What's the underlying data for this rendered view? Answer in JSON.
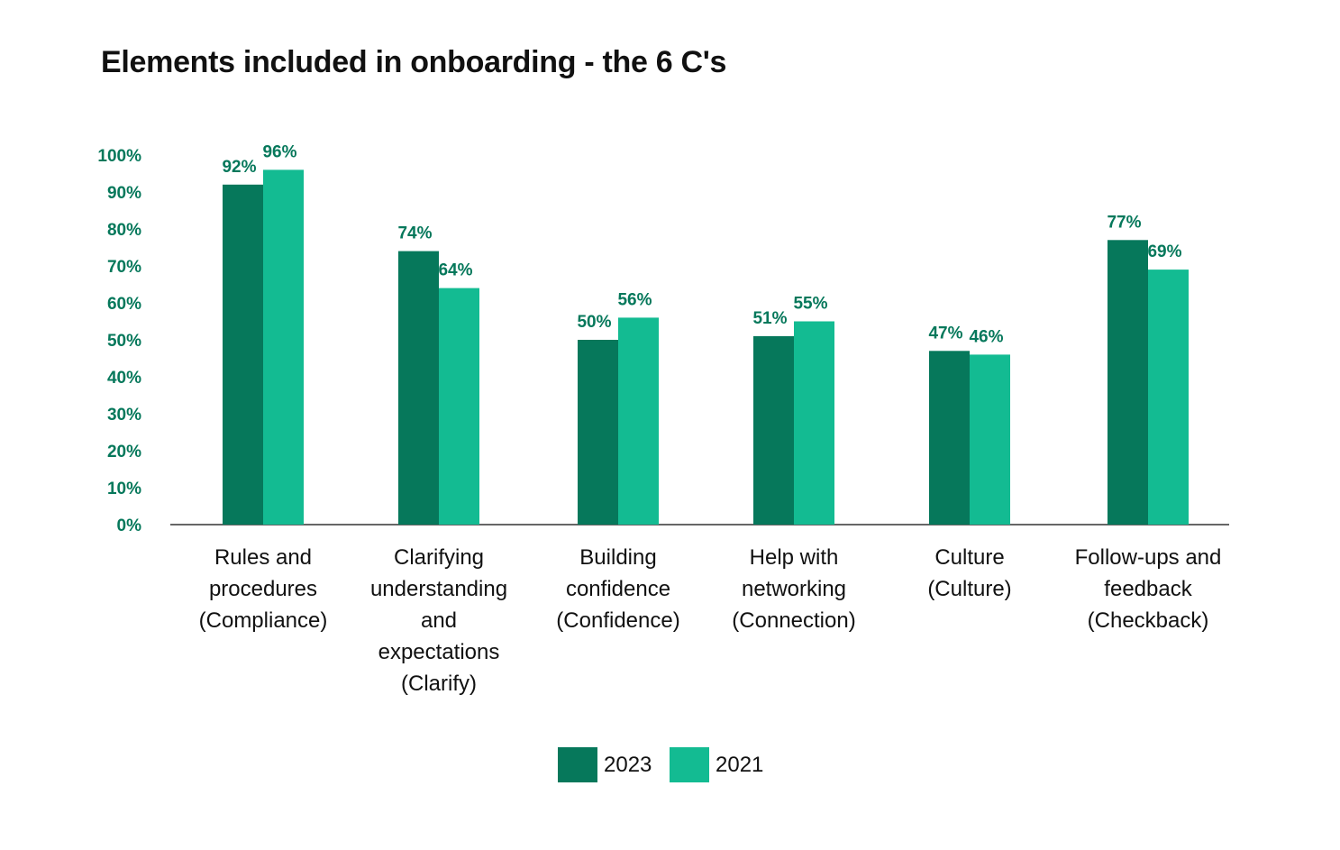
{
  "chart_data": {
    "type": "bar",
    "title": "Elements included in onboarding - the 6 C's",
    "categories": [
      [
        "Rules and",
        "procedures",
        "(Compliance)"
      ],
      [
        "Clarifying",
        "understanding",
        "and",
        "expectations",
        "(Clarify)"
      ],
      [
        "Building",
        "confidence",
        "(Confidence)"
      ],
      [
        "Help with",
        "networking",
        "(Connection)"
      ],
      [
        "Culture",
        "(Culture)"
      ],
      [
        "Follow-ups and",
        "feedback",
        "(Checkback)"
      ]
    ],
    "series": [
      {
        "name": "2023",
        "color": "#06785b",
        "values": [
          92,
          74,
          50,
          51,
          47,
          77
        ],
        "labels": [
          "92%",
          "74%",
          "50%",
          "51%",
          "47%",
          "77%"
        ]
      },
      {
        "name": "2021",
        "color": "#13bb92",
        "values": [
          96,
          64,
          56,
          55,
          46,
          69
        ],
        "labels": [
          "96%",
          "64%",
          "56%",
          "55%",
          "46%",
          "69%"
        ]
      }
    ],
    "yticks": [
      "0%",
      "10%",
      "20%",
      "30%",
      "40%",
      "50%",
      "60%",
      "70%",
      "80%",
      "90%",
      "100%"
    ],
    "ylim": [
      0,
      100
    ],
    "xlabel": "",
    "ylabel": "",
    "grid": false,
    "legend_position": "bottom-center",
    "colors": {
      "axis_text": "#06785b",
      "label_text": "#111111",
      "baseline": "#333333"
    }
  }
}
